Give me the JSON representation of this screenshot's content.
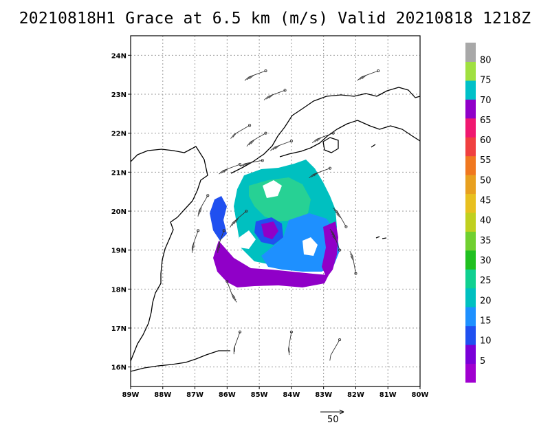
{
  "title": "20210818H1 Grace at 6.5 km (m/s) Valid 20210818 1218Z",
  "map": {
    "lon_range": [
      -89,
      -80
    ],
    "lat_range": [
      15.5,
      24.5
    ],
    "lon_ticks": [
      -89,
      -88,
      -87,
      -86,
      -85,
      -84,
      -83,
      -82,
      -81,
      -80
    ],
    "lon_labels": [
      "89W",
      "88W",
      "87W",
      "86W",
      "85W",
      "84W",
      "83W",
      "82W",
      "81W",
      "80W"
    ],
    "lat_ticks": [
      16,
      17,
      18,
      19,
      20,
      21,
      22,
      23,
      24
    ],
    "lat_labels": [
      "16N",
      "17N",
      "18N",
      "19N",
      "20N",
      "21N",
      "22N",
      "23N",
      "24N"
    ],
    "grid": true
  },
  "colorbar": {
    "colors": [
      "#a000d0",
      "#7a00d8",
      "#2050f0",
      "#1e90ff",
      "#00c0c0",
      "#10d090",
      "#20c020",
      "#70d030",
      "#c0d020",
      "#e8c020",
      "#e8a020",
      "#f07820",
      "#f04040",
      "#f01870",
      "#9000c8",
      "#00c0c8",
      "#a0e040",
      "#a8a8a8"
    ],
    "labels": [
      "5",
      "10",
      "15",
      "20",
      "25",
      "30",
      "35",
      "40",
      "45",
      "50",
      "55",
      "60",
      "65",
      "70",
      "75",
      "80"
    ]
  },
  "reference_vector": {
    "label": "50"
  },
  "wind_barbs": [
    {
      "lon": -84.8,
      "lat": 23.6,
      "dir": 250,
      "spd": 25
    },
    {
      "lon": -81.3,
      "lat": 23.6,
      "dir": 250,
      "spd": 25
    },
    {
      "lon": -84.2,
      "lat": 23.1,
      "dir": 250,
      "spd": 25
    },
    {
      "lon": -85.3,
      "lat": 22.2,
      "dir": 240,
      "spd": 20
    },
    {
      "lon": -84.8,
      "lat": 22.0,
      "dir": 240,
      "spd": 25
    },
    {
      "lon": -84.0,
      "lat": 21.8,
      "dir": 250,
      "spd": 30
    },
    {
      "lon": -82.7,
      "lat": 22.0,
      "dir": 250,
      "spd": 30
    },
    {
      "lon": -85.6,
      "lat": 21.2,
      "dir": 250,
      "spd": 30
    },
    {
      "lon": -84.9,
      "lat": 21.3,
      "dir": 260,
      "spd": 30
    },
    {
      "lon": -82.8,
      "lat": 21.1,
      "dir": 250,
      "spd": 25
    },
    {
      "lon": -86.6,
      "lat": 20.4,
      "dir": 210,
      "spd": 30
    },
    {
      "lon": -86.9,
      "lat": 19.5,
      "dir": 200,
      "spd": 30
    },
    {
      "lon": -85.4,
      "lat": 20.0,
      "dir": 230,
      "spd": 35
    },
    {
      "lon": -86.1,
      "lat": 19.5,
      "dir": 200,
      "spd": 25
    },
    {
      "lon": -82.3,
      "lat": 19.6,
      "dir": 330,
      "spd": 35
    },
    {
      "lon": -82.5,
      "lat": 19.0,
      "dir": 340,
      "spd": 35
    },
    {
      "lon": -82.0,
      "lat": 18.4,
      "dir": 350,
      "spd": 30
    },
    {
      "lon": -86.0,
      "lat": 18.2,
      "dir": 160,
      "spd": 25
    },
    {
      "lon": -85.6,
      "lat": 16.9,
      "dir": 200,
      "spd": 15
    },
    {
      "lon": -84.0,
      "lat": 16.9,
      "dir": 190,
      "spd": 15
    },
    {
      "lon": -82.5,
      "lat": 16.7,
      "dir": 210,
      "spd": 10
    }
  ]
}
